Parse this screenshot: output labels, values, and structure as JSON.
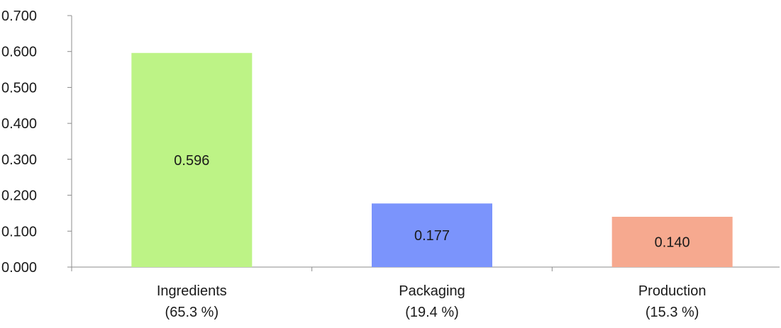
{
  "chart_data": {
    "type": "bar",
    "categories": [
      [
        "Ingredients",
        "(65.3 %)"
      ],
      [
        "Packaging",
        "(19.4 %)"
      ],
      [
        "Production",
        "(15.3 %)"
      ]
    ],
    "values": [
      0.596,
      0.177,
      0.14
    ],
    "value_labels": [
      "0.596",
      "0.177",
      "0.140"
    ],
    "bar_colors": [
      "#bdf386",
      "#7b94fc",
      "#f6a98f"
    ],
    "yticks": [
      "0.000",
      "0.100",
      "0.200",
      "0.300",
      "0.400",
      "0.500",
      "0.600",
      "0.700"
    ],
    "ylim": [
      0,
      0.7
    ],
    "title": "",
    "xlabel": "",
    "ylabel": "",
    "grid": false,
    "legend": "none"
  }
}
